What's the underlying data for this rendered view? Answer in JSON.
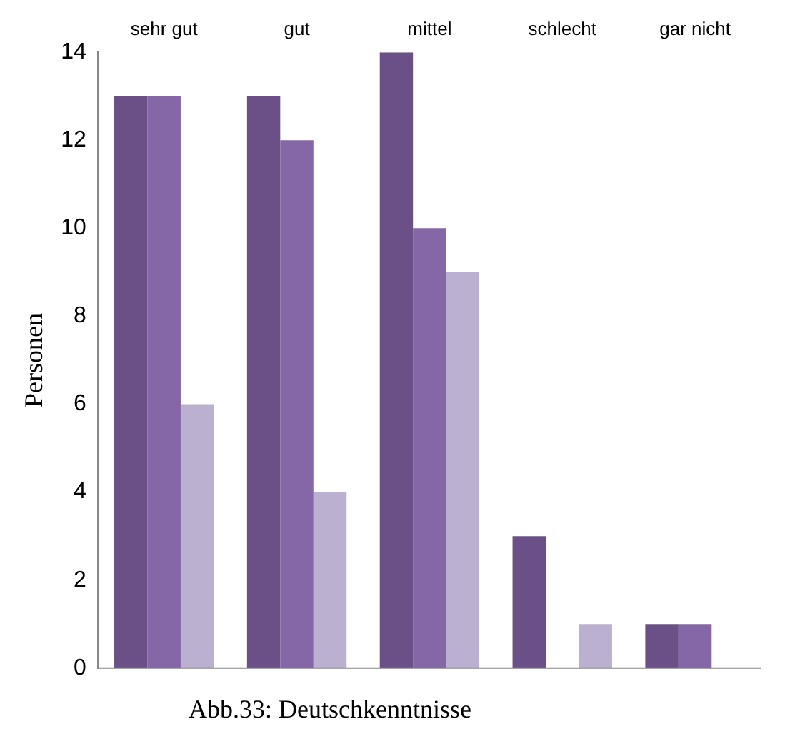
{
  "chart_data": {
    "type": "bar",
    "ylabel": "Personen",
    "categories": [
      "sehr gut",
      "gut",
      "mittel",
      "schlecht",
      "gar nicht"
    ],
    "series": [
      {
        "color": "#6b5087",
        "values": [
          13,
          13,
          14,
          3,
          1
        ]
      },
      {
        "color": "#8566a6",
        "values": [
          13,
          12,
          10,
          0,
          1
        ]
      },
      {
        "color": "#bbb0cf",
        "values": [
          6,
          4,
          9,
          1,
          0
        ]
      }
    ],
    "ylim": [
      0,
      14
    ],
    "yticks": [
      0,
      2,
      4,
      6,
      8,
      10,
      12,
      14
    ],
    "grid": false,
    "legend": false,
    "annotations": [
      "Abb.33: Deutschkenntnisse"
    ]
  }
}
